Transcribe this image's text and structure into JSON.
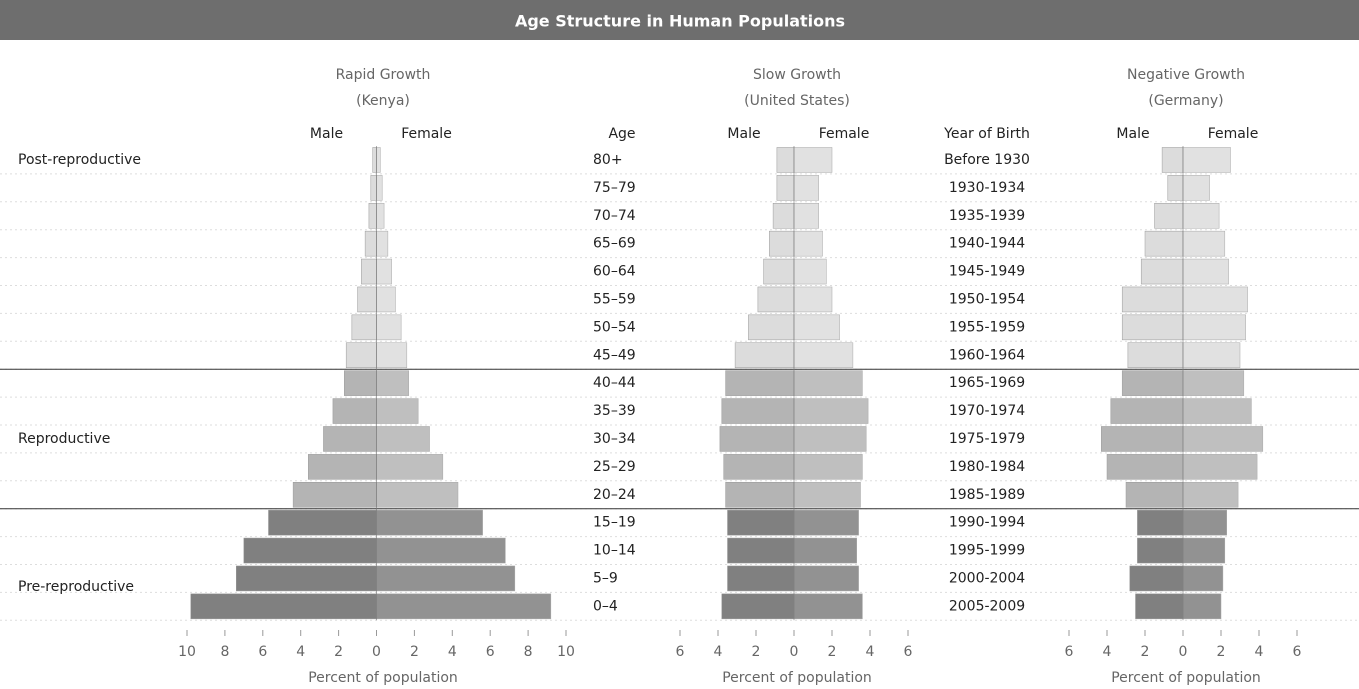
{
  "title": "Age Structure in Human Populations",
  "age_label": "Age",
  "year_label": "Year of Birth",
  "stages": [
    {
      "label": "Post-reproductive",
      "color": "#dcdcdc",
      "ages": [
        "80+",
        "75–79",
        "70–74",
        "65–69",
        "60–64",
        "55–59",
        "50–54",
        "45–49"
      ],
      "years": [
        "Before 1930",
        "1930-1934",
        "1935-1939",
        "1940-1944",
        "1945-1949",
        "1950-1954",
        "1955-1959",
        "1960-1964"
      ]
    },
    {
      "label": "Reproductive",
      "color": "#b4b4b4",
      "ages": [
        "40–44",
        "35–39",
        "30–34",
        "25–29",
        "20–24"
      ],
      "years": [
        "1965-1969",
        "1970-1974",
        "1975-1979",
        "1980-1984",
        "1985-1989"
      ]
    },
    {
      "label": "Pre-reproductive",
      "color": "#808080",
      "ages": [
        "15–19",
        "10–14",
        "5–9",
        "0–4"
      ],
      "years": [
        "1990-1994",
        "1995-1999",
        "2000-2004",
        "2005-2009"
      ]
    }
  ],
  "chart_data": [
    {
      "type": "pyramid",
      "title": "Rapid Growth",
      "subtitle": "(Kenya)",
      "xlabel": "Percent of population",
      "xlim": [
        -10,
        10
      ],
      "xticks": [
        {
          "value": -10,
          "label": "10"
        },
        {
          "value": -8,
          "label": "8"
        },
        {
          "value": -6,
          "label": "6"
        },
        {
          "value": -4,
          "label": "4"
        },
        {
          "value": -2,
          "label": "2"
        },
        0,
        2,
        4,
        6,
        8,
        10
      ],
      "series": [
        {
          "name": "Male",
          "side": "left",
          "values": [
            0.2,
            0.3,
            0.4,
            0.6,
            0.8,
            1.0,
            1.3,
            1.6,
            1.7,
            2.3,
            2.8,
            3.6,
            4.4,
            5.7,
            7.0,
            7.4,
            9.8
          ]
        },
        {
          "name": "Female",
          "side": "right",
          "values": [
            0.2,
            0.3,
            0.4,
            0.6,
            0.8,
            1.0,
            1.3,
            1.6,
            1.7,
            2.2,
            2.8,
            3.5,
            4.3,
            5.6,
            6.8,
            7.3,
            9.2
          ]
        }
      ]
    },
    {
      "type": "pyramid",
      "title": "Slow Growth",
      "subtitle": "(United States)",
      "xlabel": "Percent of population",
      "xlim": [
        -6,
        6
      ],
      "xticks": [
        {
          "value": -6,
          "label": "6"
        },
        {
          "value": -4,
          "label": "4"
        },
        {
          "value": -2,
          "label": "2"
        },
        0,
        2,
        4,
        6
      ],
      "series": [
        {
          "name": "Male",
          "side": "left",
          "values": [
            0.9,
            0.9,
            1.1,
            1.3,
            1.6,
            1.9,
            2.4,
            3.1,
            3.6,
            3.8,
            3.9,
            3.7,
            3.6,
            3.5,
            3.5,
            3.5,
            3.8
          ]
        },
        {
          "name": "Female",
          "side": "right",
          "values": [
            2.0,
            1.3,
            1.3,
            1.5,
            1.7,
            2.0,
            2.4,
            3.1,
            3.6,
            3.9,
            3.8,
            3.6,
            3.5,
            3.4,
            3.3,
            3.4,
            3.6
          ]
        }
      ]
    },
    {
      "type": "pyramid",
      "title": "Negative Growth",
      "subtitle": "(Germany)",
      "xlabel": "Percent of population",
      "xlim": [
        -6,
        6
      ],
      "xticks": [
        {
          "value": -6,
          "label": "6"
        },
        {
          "value": -4,
          "label": "4"
        },
        {
          "value": -2,
          "label": "2"
        },
        0,
        2,
        4,
        6
      ],
      "series": [
        {
          "name": "Male",
          "side": "left",
          "values": [
            1.1,
            0.8,
            1.5,
            2.0,
            2.2,
            3.2,
            3.2,
            2.9,
            3.2,
            3.8,
            4.3,
            4.0,
            3.0,
            2.4,
            2.4,
            2.8,
            2.5
          ]
        },
        {
          "name": "Female",
          "side": "right",
          "values": [
            2.5,
            1.4,
            1.9,
            2.2,
            2.4,
            3.4,
            3.3,
            3.0,
            3.2,
            3.6,
            4.2,
            3.9,
            2.9,
            2.3,
            2.2,
            2.1,
            2.0
          ]
        }
      ]
    }
  ]
}
